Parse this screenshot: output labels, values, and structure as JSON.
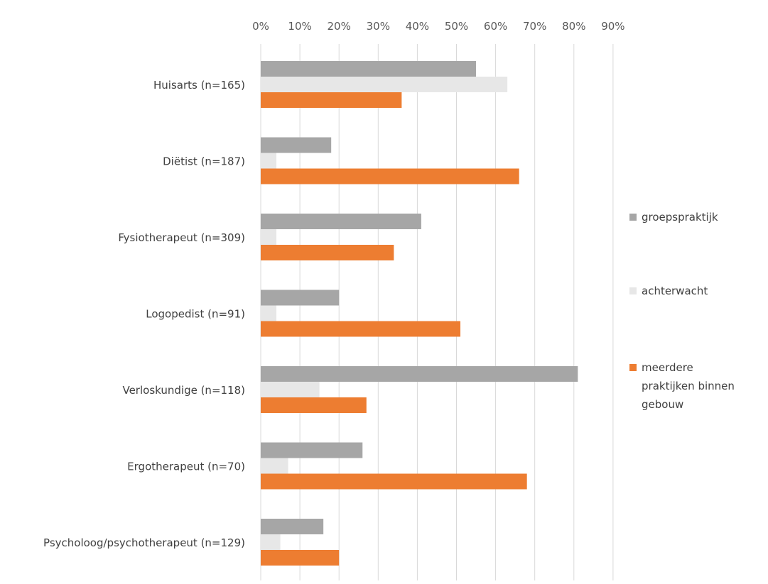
{
  "chart_data": {
    "type": "bar",
    "orientation": "horizontal",
    "title": "",
    "xlabel": "",
    "ylabel": "",
    "xlim": [
      0,
      90
    ],
    "x_ticks": [
      "0%",
      "10%",
      "20%",
      "30%",
      "40%",
      "50%",
      "60%",
      "70%",
      "80%",
      "90%"
    ],
    "x_axis_position": "top",
    "grid": true,
    "legend_position": "right",
    "categories": [
      "Huisarts (n=165)",
      "Diëtist (n=187)",
      "Fysiotherapeut (n=309)",
      "Logopedist (n=91)",
      "Verloskundige (n=118)",
      "Ergotherapeut (n=70)",
      "Psycholoog/psychotherapeut (n=129)"
    ],
    "series": [
      {
        "name": "groepspraktijk",
        "color": "#a6a6a6",
        "values": [
          55,
          18,
          41,
          20,
          81,
          26,
          16
        ]
      },
      {
        "name": "achterwacht",
        "color": "#e7e7e7",
        "values": [
          63,
          4,
          4,
          4,
          15,
          7,
          5
        ]
      },
      {
        "name": "meerdere praktijken binnen gebouw",
        "legend_lines": [
          "meerdere",
          "praktijken binnen",
          "gebouw"
        ],
        "color": "#ed7d31",
        "values": [
          36,
          66,
          34,
          51,
          27,
          68,
          20
        ]
      }
    ]
  }
}
